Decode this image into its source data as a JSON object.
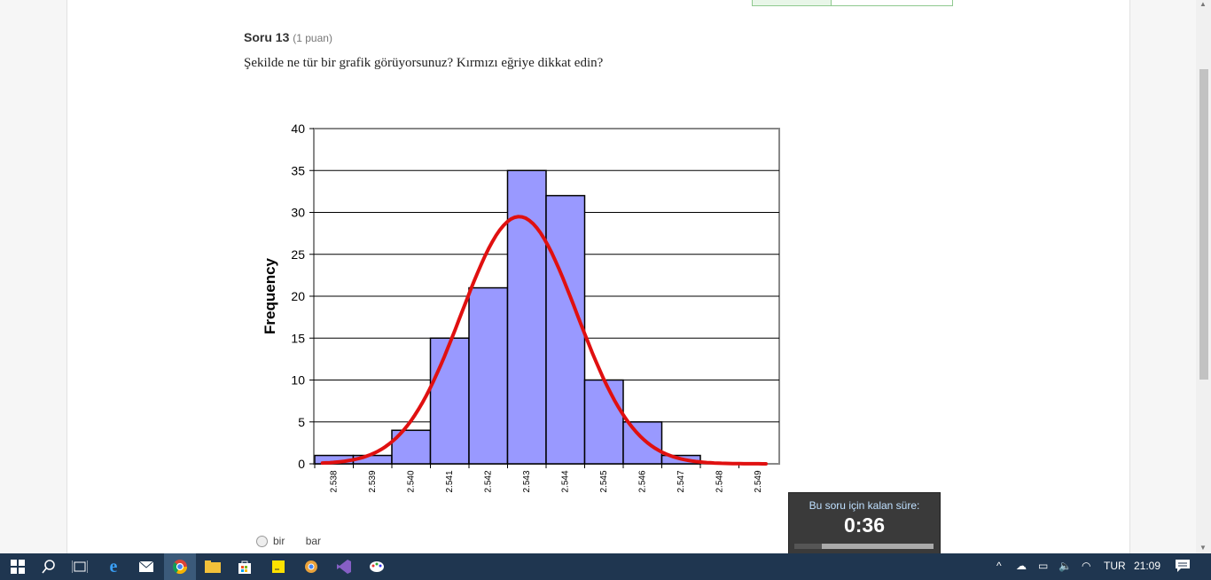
{
  "question": {
    "title": "Soru 13",
    "points": "(1 puan)",
    "text": "Şekilde ne tür bir grafik görüyorsunuz? Kırmızı eğriye dikkat edin?"
  },
  "chart_data": {
    "type": "bar",
    "ylabel": "Frequency",
    "xlabel": "",
    "ylim": [
      0,
      40
    ],
    "yticks": [
      0,
      5,
      10,
      15,
      20,
      25,
      30,
      35,
      40
    ],
    "categories": [
      "2.538",
      "2.539",
      "2.540",
      "2.541",
      "2.542",
      "2.543",
      "2.544",
      "2.545",
      "2.546",
      "2.547",
      "2.548",
      "2.549"
    ],
    "values": [
      1,
      1,
      4,
      15,
      21,
      35,
      32,
      10,
      5,
      1,
      0,
      0
    ],
    "bar_color": "#9999ff",
    "curve_color": "#e01010",
    "curve": {
      "type": "normal fit",
      "peak": 29.5
    },
    "grid": true
  },
  "options": [
    {
      "label": "bir"
    },
    {
      "label": "bar"
    }
  ],
  "timer": {
    "label": "Bu soru için kalan süre:",
    "time": "0:36",
    "progress": 0.2
  },
  "taskbar": {
    "language": "TUR",
    "clock": "21:09"
  }
}
